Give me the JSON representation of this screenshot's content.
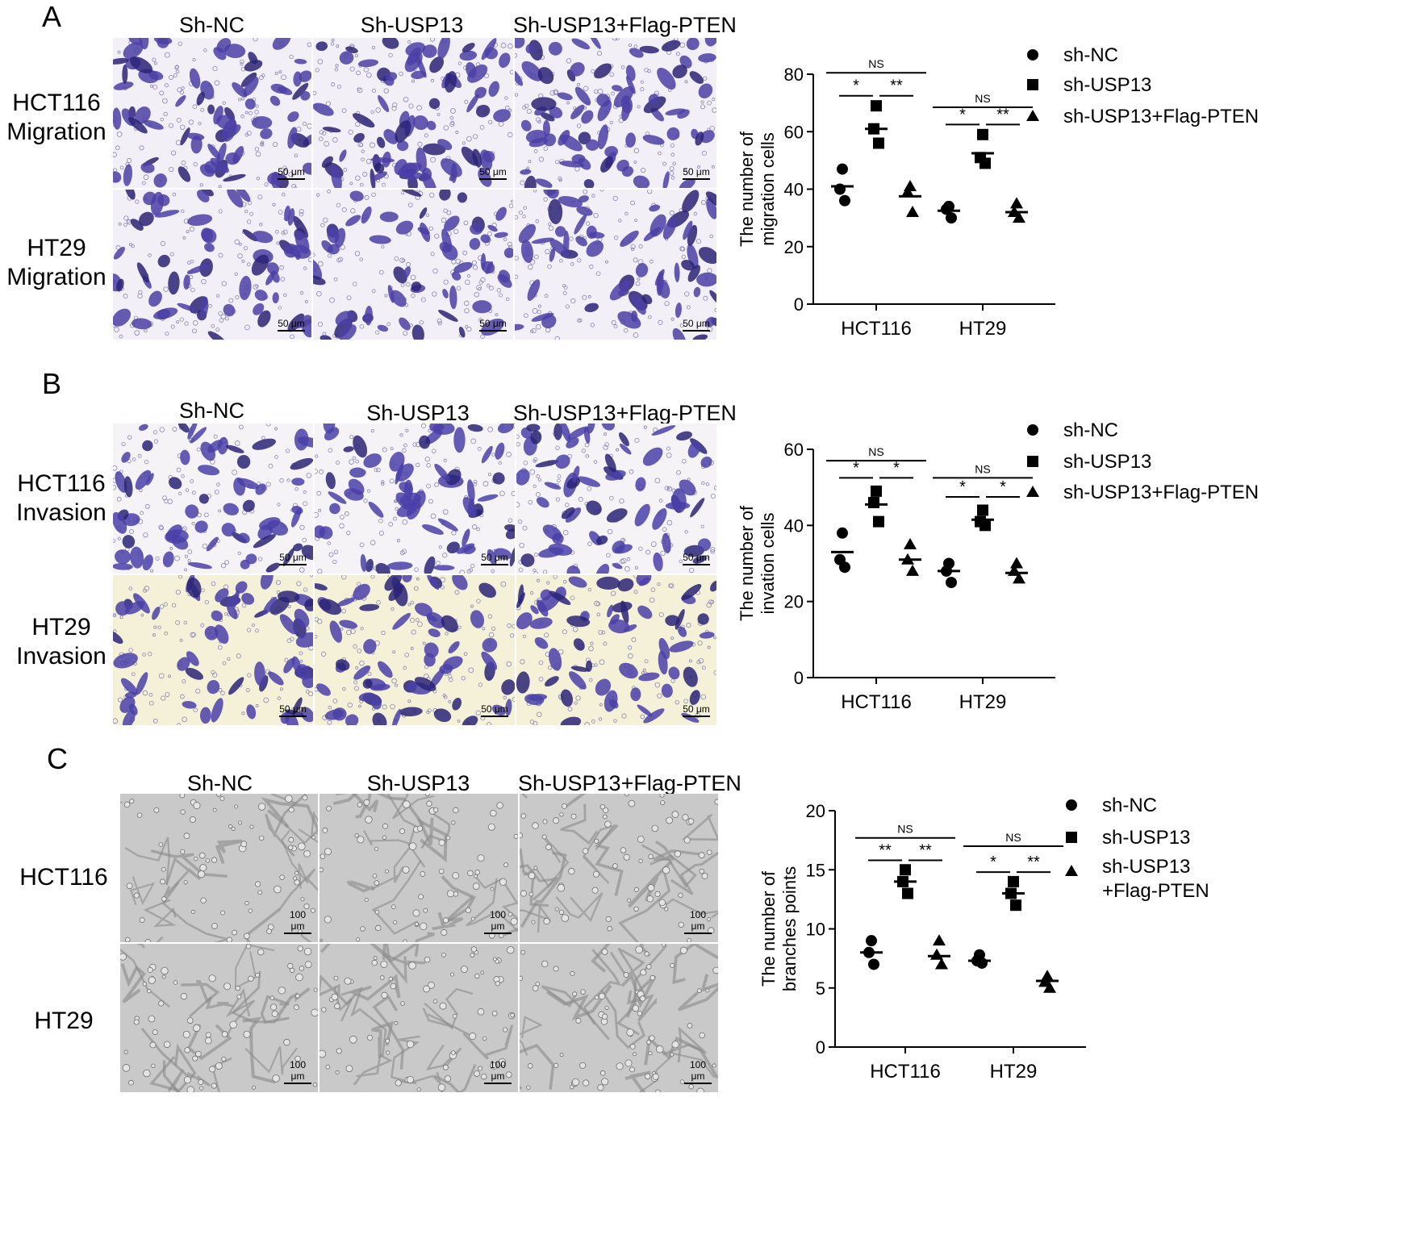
{
  "panels": [
    {
      "letter": "A",
      "columns": [
        "Sh-NC",
        "Sh-USP13",
        "Sh-USP13+Flag-PTEN"
      ],
      "rows": [
        "HCT116\nMigration",
        "HT29\nMigration"
      ],
      "scalebar": "50 μm",
      "image_style": "stain-blue",
      "colors": {
        "bg": "#f3eff6",
        "cell": "#4b3fa6",
        "dark": "#2a2376"
      }
    },
    {
      "letter": "B",
      "columns": [
        "Sh-NC",
        "Sh-USP13",
        "Sh-USP13+Flag-PTEN"
      ],
      "rows": [
        "HCT116\nInvasion",
        "HT29\nInvasion"
      ],
      "scalebar": "50 μm",
      "image_style": "stain-blue",
      "colors": {
        "bg": "#f6f3f7",
        "bg2": "#f4f1d8",
        "cell": "#4a40a8",
        "dark": "#2a2376"
      }
    },
    {
      "letter": "C",
      "columns": [
        "Sh-NC",
        "Sh-USP13",
        "Sh-USP13+Flag-PTEN"
      ],
      "rows": [
        "HCT116",
        "HT29"
      ],
      "scalebar": "100 μm",
      "image_style": "brightfield-gray",
      "colors": {
        "bg": "#c9c9c9",
        "cell": "#8a8a8a"
      }
    }
  ],
  "chart_data": [
    {
      "type": "scatter",
      "panel": "A",
      "ylabel": [
        "The number of",
        "migration cells"
      ],
      "categories": [
        "HCT116",
        "HT29"
      ],
      "ylim": [
        0,
        80
      ],
      "yticks": [
        0,
        20,
        40,
        60,
        80
      ],
      "series": [
        {
          "name": "sh-NC",
          "marker": "circle",
          "points": [
            [
              47,
              40,
              36
            ],
            [
              34,
              33,
              30
            ]
          ],
          "means": [
            41,
            32.5
          ]
        },
        {
          "name": "sh-USP13",
          "marker": "square",
          "points": [
            [
              69,
              61,
              56
            ],
            [
              59,
              51,
              49
            ]
          ],
          "means": [
            61,
            52.5
          ]
        },
        {
          "name": "sh-USP13+Flag-PTEN",
          "marker": "triangle",
          "points": [
            [
              41,
              39,
              32
            ],
            [
              35,
              32,
              30
            ]
          ],
          "means": [
            37.5,
            32
          ]
        }
      ],
      "brackets": [
        {
          "group": "HCT116",
          "from": 0,
          "to": 2,
          "label": "NS",
          "y": 80.5
        },
        {
          "group": "HCT116",
          "from": 0,
          "to": 1,
          "label": "*",
          "y": 72.5
        },
        {
          "group": "HCT116",
          "from": 1,
          "to": 2,
          "label": "**",
          "y": 72.5
        },
        {
          "group": "HT29",
          "from": 0,
          "to": 2,
          "label": "NS",
          "y": 68.5
        },
        {
          "group": "HT29",
          "from": 0,
          "to": 1,
          "label": "*",
          "y": 62.5
        },
        {
          "group": "HT29",
          "from": 1,
          "to": 2,
          "label": "**",
          "y": 62.5
        }
      ],
      "legend": "right"
    },
    {
      "type": "scatter",
      "panel": "B",
      "ylabel": [
        "The number of",
        "invation cells"
      ],
      "categories": [
        "HCT116",
        "HT29"
      ],
      "ylim": [
        0,
        60
      ],
      "yticks": [
        0,
        20,
        40,
        60
      ],
      "series": [
        {
          "name": "sh-NC",
          "marker": "circle",
          "points": [
            [
              38,
              31,
              29
            ],
            [
              30,
              28,
              25
            ]
          ],
          "means": [
            33,
            28
          ]
        },
        {
          "name": "sh-USP13",
          "marker": "square",
          "points": [
            [
              49,
              46,
              41
            ],
            [
              44,
              41,
              40
            ]
          ],
          "means": [
            45.5,
            41.5
          ]
        },
        {
          "name": "sh-USP13+Flag-PTEN",
          "marker": "triangle",
          "points": [
            [
              35,
              31,
              28
            ],
            [
              30,
              28,
              26
            ]
          ],
          "means": [
            31,
            27.5
          ]
        }
      ],
      "brackets": [
        {
          "group": "HCT116",
          "from": 0,
          "to": 2,
          "label": "NS",
          "y": 57
        },
        {
          "group": "HCT116",
          "from": 0,
          "to": 1,
          "label": "*",
          "y": 52.5
        },
        {
          "group": "HCT116",
          "from": 1,
          "to": 2,
          "label": "*",
          "y": 52.5
        },
        {
          "group": "HT29",
          "from": 0,
          "to": 2,
          "label": "NS",
          "y": 52.5
        },
        {
          "group": "HT29",
          "from": 0,
          "to": 1,
          "label": "*",
          "y": 47.5
        },
        {
          "group": "HT29",
          "from": 1,
          "to": 2,
          "label": "*",
          "y": 47.5
        }
      ],
      "legend": "right"
    },
    {
      "type": "scatter",
      "panel": "C",
      "ylabel": [
        "The number of",
        "branches points"
      ],
      "categories": [
        "HCT116",
        "HT29"
      ],
      "ylim": [
        0,
        20
      ],
      "yticks": [
        0,
        5,
        10,
        15,
        20
      ],
      "series": [
        {
          "name": "sh-NC",
          "marker": "circle",
          "points": [
            [
              9,
              8,
              7
            ],
            [
              7.8,
              7.3,
              7.1
            ]
          ],
          "means": [
            8,
            7.3
          ]
        },
        {
          "name": "sh-USP13",
          "marker": "square",
          "points": [
            [
              15,
              14,
              13
            ],
            [
              14,
              13,
              12
            ]
          ],
          "means": [
            14,
            13
          ]
        },
        {
          "name": "sh-USP13\n+Flag-PTEN",
          "marker": "triangle",
          "points": [
            [
              9,
              7.8,
              7
            ],
            [
              6,
              5.5,
              5
            ]
          ],
          "means": [
            7.7,
            5.6
          ]
        }
      ],
      "brackets": [
        {
          "group": "HCT116",
          "from": 0,
          "to": 2,
          "label": "NS",
          "y": 17.7
        },
        {
          "group": "HCT116",
          "from": 0,
          "to": 1,
          "label": "**",
          "y": 15.8
        },
        {
          "group": "HCT116",
          "from": 1,
          "to": 2,
          "label": "**",
          "y": 15.8
        },
        {
          "group": "HT29",
          "from": 0,
          "to": 2,
          "label": "NS",
          "y": 17
        },
        {
          "group": "HT29",
          "from": 0,
          "to": 1,
          "label": "*",
          "y": 14.8
        },
        {
          "group": "HT29",
          "from": 1,
          "to": 2,
          "label": "**",
          "y": 14.8
        }
      ],
      "legend": "right"
    }
  ]
}
